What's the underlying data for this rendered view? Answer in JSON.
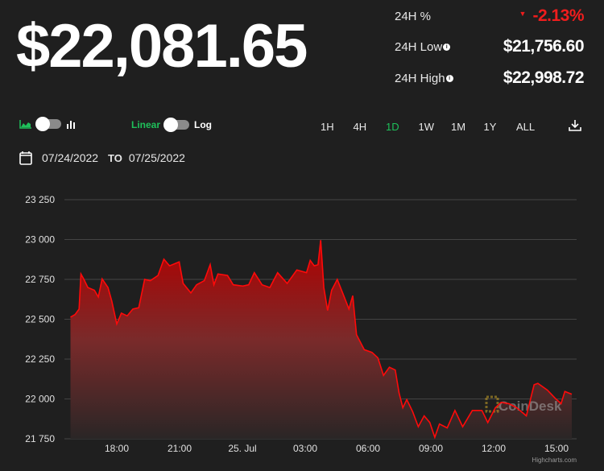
{
  "price": "$22,081.65",
  "stats": [
    {
      "label": "24H %",
      "value": "-2.13%"
    },
    {
      "label": "24H Low",
      "value": "$21,756.60"
    },
    {
      "label": "24H High",
      "value": "$22,998.72"
    }
  ],
  "toolbar": {
    "linear": "Linear",
    "log": "Log",
    "ranges": [
      "1H",
      "4H",
      "1D",
      "1W",
      "1M",
      "1Y",
      "ALL"
    ],
    "active_range": "1D"
  },
  "dates": {
    "from": "07/24/2022",
    "to_label": "TO",
    "to": "07/25/2022"
  },
  "colors": {
    "accent": "#1fc05a",
    "negative": "#f01d1d",
    "line": "#ff0a0a"
  },
  "credit": "Highcharts.com",
  "watermark": "CoinDesk",
  "chart_data": {
    "type": "area",
    "xlabel": "",
    "ylabel": "",
    "ylim": [
      21750,
      23250
    ],
    "yticks": [
      23250,
      23000,
      22750,
      22500,
      22250,
      22000,
      21750
    ],
    "ytick_labels": [
      "23 250",
      "23 000",
      "22 750",
      "22 500",
      "22 250",
      "22 000",
      "21 750"
    ],
    "xticks": [
      18,
      21,
      24,
      27,
      30,
      33,
      36,
      39
    ],
    "xtick_labels": [
      "18:00",
      "21:00",
      "25. Jul",
      "03:00",
      "06:00",
      "09:00",
      "12:00",
      "15:00"
    ],
    "x_unit": "hours since 24 Jul 00:00",
    "x": [
      15.79,
      16.01,
      16.2,
      16.29,
      16.43,
      16.62,
      16.93,
      17.12,
      17.3,
      17.58,
      17.76,
      18.0,
      18.22,
      18.5,
      18.77,
      19.05,
      19.33,
      19.6,
      19.97,
      20.25,
      20.52,
      20.98,
      21.17,
      21.54,
      21.81,
      22.18,
      22.46,
      22.64,
      22.83,
      23.29,
      23.56,
      24.02,
      24.3,
      24.57,
      24.94,
      25.31,
      25.68,
      26.14,
      26.6,
      27.06,
      27.24,
      27.43,
      27.61,
      27.74,
      27.89,
      28.07,
      28.26,
      28.53,
      28.81,
      29.09,
      29.27,
      29.45,
      29.82,
      30.19,
      30.47,
      30.74,
      31.02,
      31.3,
      31.48,
      31.66,
      31.85,
      32.13,
      32.4,
      32.68,
      32.95,
      33.19,
      33.41,
      33.78,
      34.15,
      34.52,
      34.98,
      35.44,
      35.72,
      36.08,
      36.36,
      36.73,
      37.1,
      37.56,
      37.93,
      38.11,
      38.57,
      38.94,
      39.22,
      39.4,
      39.73
    ],
    "y": [
      22513,
      22530,
      22564,
      22784,
      22750,
      22699,
      22682,
      22640,
      22753,
      22699,
      22614,
      22470,
      22538,
      22521,
      22564,
      22572,
      22750,
      22742,
      22775,
      22877,
      22835,
      22860,
      22725,
      22665,
      22716,
      22742,
      22843,
      22716,
      22784,
      22775,
      22716,
      22708,
      22716,
      22792,
      22716,
      22699,
      22792,
      22725,
      22809,
      22792,
      22869,
      22835,
      22843,
      22996,
      22699,
      22555,
      22682,
      22750,
      22657,
      22564,
      22648,
      22403,
      22309,
      22292,
      22258,
      22148,
      22199,
      22182,
      22038,
      21945,
      21996,
      21920,
      21826,
      21894,
      21852,
      21759,
      21843,
      21818,
      21928,
      21826,
      21928,
      21928,
      21852,
      21945,
      21979,
      21970,
      21945,
      21894,
      22089,
      22098,
      22055,
      22004,
      21970,
      22047,
      22030
    ]
  }
}
